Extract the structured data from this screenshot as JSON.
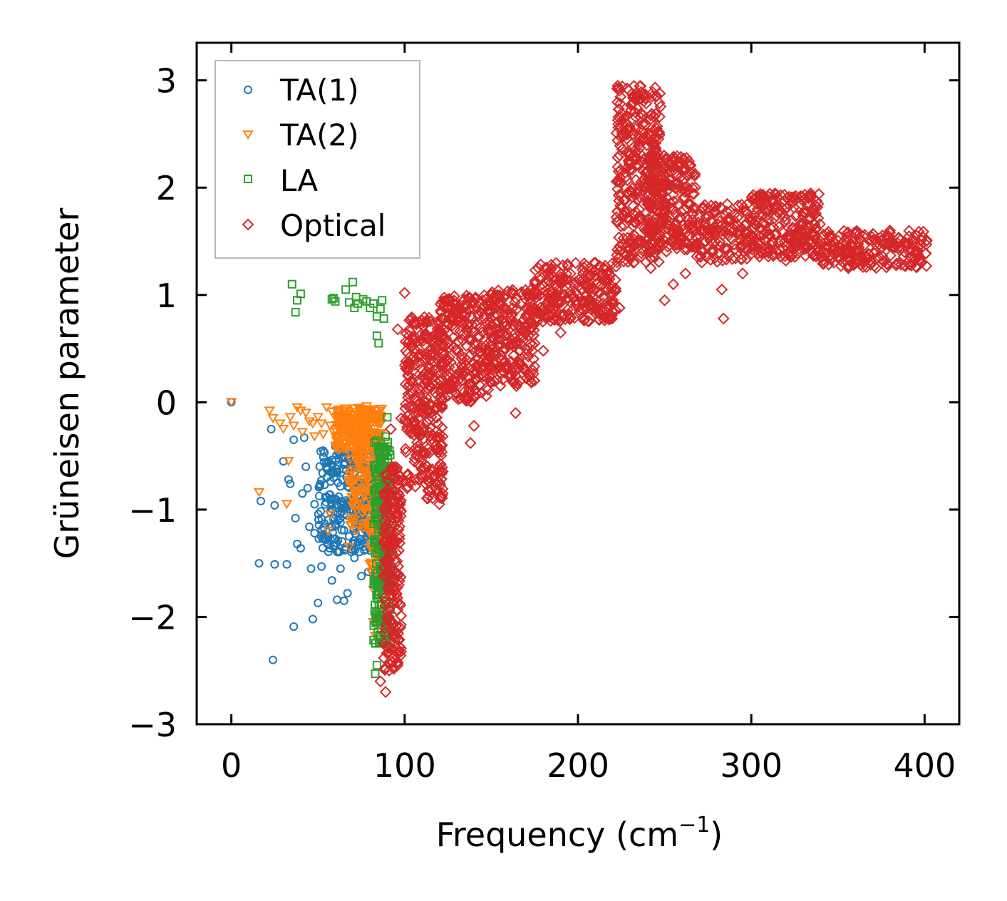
{
  "chart_data": {
    "type": "scatter",
    "xlabel": "Frequency (cm",
    "xlabel_sup": "−1",
    "xlabel_close": ")",
    "ylabel": "Grüneisen parameter",
    "xlim": [
      -20,
      420
    ],
    "ylim": [
      -3,
      3.35
    ],
    "xticks": [
      0,
      100,
      200,
      300,
      400
    ],
    "xtick_labels": [
      "0",
      "100",
      "200",
      "300",
      "400"
    ],
    "yticks": [
      -3,
      -2,
      -1,
      0,
      1,
      2,
      3
    ],
    "ytick_labels": [
      "−3",
      "−2",
      "−1",
      "0",
      "1",
      "2",
      "3"
    ],
    "legend_position": "top-left",
    "series": [
      {
        "name": "TA(1)",
        "marker": "circle",
        "color": "#1f77b4",
        "points": [
          [
            0,
            0
          ],
          [
            24,
            -2.4
          ],
          [
            23,
            -0.25
          ],
          [
            17,
            -0.92
          ],
          [
            25,
            -0.96
          ],
          [
            16,
            -1.5
          ],
          [
            25,
            -1.51
          ],
          [
            32,
            -1.51
          ],
          [
            36,
            -2.09
          ],
          [
            30,
            -0.55
          ],
          [
            33,
            -0.72
          ],
          [
            34,
            -0.76
          ],
          [
            36,
            -0.35
          ],
          [
            37,
            -1.08
          ],
          [
            38,
            -1.32
          ],
          [
            40,
            -1.36
          ],
          [
            42,
            -0.33
          ],
          [
            44,
            -0.8
          ],
          [
            45,
            -1.16
          ],
          [
            46,
            -1.55
          ],
          [
            47,
            -2.02
          ],
          [
            48,
            -1.22
          ],
          [
            50,
            -1.87
          ],
          [
            52,
            -1.53
          ],
          [
            53,
            -0.45
          ],
          [
            55,
            -0.7
          ],
          [
            57,
            -1.02
          ],
          [
            58,
            -1.66
          ],
          [
            59,
            -1.34
          ],
          [
            60,
            -0.41
          ],
          [
            61,
            -1.84
          ],
          [
            62,
            -0.88
          ],
          [
            63,
            -1.55
          ],
          [
            65,
            -1.85
          ],
          [
            66,
            -0.25
          ],
          [
            67,
            -1.78
          ],
          [
            68,
            -1.25
          ],
          [
            70,
            -0.62
          ],
          [
            71,
            -1.45
          ],
          [
            72,
            -1.04
          ],
          [
            74,
            -0.49
          ],
          [
            75,
            -1.62
          ],
          [
            76,
            -0.98
          ],
          [
            77,
            -0.18
          ],
          [
            78,
            -1.2
          ],
          [
            79,
            -1.58
          ],
          [
            80,
            -0.85
          ],
          [
            81,
            -0.33
          ],
          [
            82,
            -0.72
          ],
          [
            83,
            -1.1
          ],
          [
            41,
            -0.85
          ],
          [
            43,
            -0.6
          ],
          [
            48,
            -0.95
          ],
          [
            51,
            -0.78
          ],
          [
            54,
            -1.25
          ],
          [
            56,
            -0.55
          ],
          [
            58,
            -0.9
          ],
          [
            61,
            -0.65
          ],
          [
            63,
            -1.12
          ],
          [
            64,
            -0.72
          ],
          [
            66,
            -1.35
          ],
          [
            68,
            -0.95
          ],
          [
            69,
            -0.52
          ],
          [
            71,
            -0.78
          ],
          [
            73,
            -1.3
          ],
          [
            75,
            -0.68
          ],
          [
            77,
            -0.88
          ],
          [
            78,
            -0.55
          ],
          [
            80,
            -1.05
          ],
          [
            82,
            -0.48
          ],
          [
            84,
            -0.8
          ],
          [
            85,
            -0.62
          ],
          [
            86,
            -0.95
          ]
        ],
        "clusters": [
          {
            "x": [
              50,
              86
            ],
            "y": [
              -1.4,
              -0.45
            ],
            "n": 280
          }
        ]
      },
      {
        "name": "TA(2)",
        "marker": "triangle-down",
        "color": "#ff7f0e",
        "points": [
          [
            0,
            0
          ],
          [
            16,
            -0.84
          ],
          [
            22,
            -0.08
          ],
          [
            24,
            -0.15
          ],
          [
            28,
            -0.2
          ],
          [
            30,
            -0.25
          ],
          [
            32,
            -0.95
          ],
          [
            33,
            -0.55
          ],
          [
            34,
            -0.14
          ],
          [
            36,
            -0.22
          ],
          [
            38,
            -0.05
          ],
          [
            40,
            -0.08
          ],
          [
            41,
            -0.28
          ],
          [
            43,
            -0.1
          ],
          [
            45,
            -0.18
          ],
          [
            47,
            -0.2
          ],
          [
            48,
            -0.32
          ],
          [
            50,
            -0.14
          ],
          [
            52,
            -0.2
          ],
          [
            53,
            -0.3
          ],
          [
            55,
            -0.05
          ],
          [
            57,
            -0.22
          ],
          [
            58,
            -0.09
          ],
          [
            59,
            -0.28
          ],
          [
            61,
            -0.17
          ],
          [
            62,
            -0.07
          ],
          [
            63,
            -0.38
          ],
          [
            64,
            -0.12
          ],
          [
            65,
            -0.25
          ],
          [
            66,
            -0.08
          ],
          [
            67,
            -0.18
          ],
          [
            68,
            -0.3
          ],
          [
            69,
            -0.13
          ],
          [
            70,
            -0.2
          ],
          [
            71,
            -0.06
          ],
          [
            72,
            -0.26
          ],
          [
            73,
            -0.16
          ],
          [
            74,
            -0.35
          ],
          [
            75,
            -0.1
          ],
          [
            76,
            -0.22
          ],
          [
            77,
            -0.3
          ],
          [
            78,
            -0.04
          ],
          [
            79,
            -0.19
          ],
          [
            80,
            -0.12
          ],
          [
            81,
            -0.28
          ],
          [
            82,
            -0.16
          ],
          [
            57,
            -1.05
          ],
          [
            56,
            -1.2
          ],
          [
            82,
            -1.75
          ],
          [
            82,
            -2.05
          ],
          [
            83,
            -2.18
          ],
          [
            68,
            -1.35
          ]
        ],
        "clusters": [
          {
            "x": [
              60,
              87
            ],
            "y": [
              -0.45,
              -0.05
            ],
            "n": 200
          },
          {
            "x": [
              68,
              86
            ],
            "y": [
              -1.2,
              -0.35
            ],
            "n": 140
          },
          {
            "x": [
              80,
              86
            ],
            "y": [
              -1.6,
              -1.1
            ],
            "n": 40
          }
        ]
      },
      {
        "name": "LA",
        "marker": "square",
        "color": "#2ca02c",
        "points": [
          [
            35,
            1.1
          ],
          [
            37,
            0.84
          ],
          [
            38,
            0.95
          ],
          [
            40,
            1.01
          ],
          [
            58,
            0.96
          ],
          [
            59,
            0.97
          ],
          [
            60,
            0.94
          ],
          [
            66,
            1.05
          ],
          [
            68,
            0.93
          ],
          [
            70,
            1.12
          ],
          [
            71,
            0.88
          ],
          [
            72,
            0.98
          ],
          [
            73,
            0.92
          ],
          [
            76,
            0.96
          ],
          [
            78,
            0.94
          ],
          [
            80,
            0.88
          ],
          [
            82,
            0.92
          ],
          [
            84,
            0.62
          ],
          [
            85,
            0.55
          ],
          [
            86,
            0.87
          ],
          [
            87,
            0.95
          ],
          [
            84,
            0.8
          ],
          [
            88,
            0.78
          ],
          [
            90,
            -0.14
          ],
          [
            89,
            -0.32
          ],
          [
            88,
            -0.45
          ],
          [
            83,
            -2.53
          ],
          [
            84,
            -2.45
          ]
        ],
        "clusters": [
          {
            "x": [
              82,
              92
            ],
            "y": [
              -2.25,
              -0.35
            ],
            "n": 260
          }
        ]
      },
      {
        "name": "Optical",
        "marker": "diamond",
        "color": "#d62728",
        "points": [
          [
            86,
            -2.6
          ],
          [
            89,
            -2.7
          ],
          [
            91,
            -2.5
          ],
          [
            92,
            -0.25
          ],
          [
            98,
            -0.15
          ],
          [
            96,
            0.68
          ],
          [
            100,
            1.02
          ],
          [
            110,
            -0.62
          ],
          [
            113,
            -0.6
          ],
          [
            115,
            -0.1
          ],
          [
            118,
            -0.75
          ],
          [
            120,
            -0.95
          ],
          [
            122,
            -0.85
          ],
          [
            125,
            0.95
          ],
          [
            133,
            0.35
          ],
          [
            138,
            -0.38
          ],
          [
            140,
            -0.22
          ],
          [
            145,
            0.95
          ],
          [
            150,
            1.0
          ],
          [
            155,
            0.65
          ],
          [
            164,
            -0.1
          ],
          [
            175,
            0.55
          ],
          [
            180,
            0.48
          ],
          [
            190,
            0.65
          ],
          [
            205,
            1.1
          ],
          [
            210,
            1.3
          ],
          [
            216,
            0.85
          ],
          [
            224,
            0.88
          ],
          [
            232,
            1.3
          ],
          [
            242,
            1.25
          ],
          [
            250,
            0.95
          ],
          [
            255,
            1.1
          ],
          [
            262,
            1.2
          ],
          [
            268,
            1.6
          ],
          [
            272,
            1.4
          ],
          [
            283,
            1.05
          ],
          [
            284,
            0.78
          ],
          [
            288,
            1.78
          ],
          [
            292,
            1.65
          ],
          [
            295,
            1.2
          ],
          [
            300,
            1.55
          ],
          [
            305,
            1.5
          ],
          [
            320,
            1.32
          ],
          [
            326,
            1.45
          ],
          [
            332,
            1.6
          ],
          [
            340,
            1.5
          ],
          [
            345,
            1.55
          ],
          [
            350,
            1.4
          ],
          [
            356,
            1.25
          ],
          [
            365,
            1.3
          ],
          [
            380,
            1.6
          ],
          [
            392,
            1.35
          ],
          [
            398,
            1.3
          ],
          [
            401,
            1.27
          ]
        ],
        "clusters": [
          {
            "x": [
              88,
              98
            ],
            "y": [
              -2.5,
              -0.6
            ],
            "n": 220
          },
          {
            "x": [
              100,
              122
            ],
            "y": [
              -0.9,
              0.8
            ],
            "n": 320
          },
          {
            "x": [
              120,
              150
            ],
            "y": [
              0.0,
              1.0
            ],
            "n": 250
          },
          {
            "x": [
              148,
              175
            ],
            "y": [
              0.15,
              1.05
            ],
            "n": 220
          },
          {
            "x": [
              175,
              222
            ],
            "y": [
              0.75,
              1.3
            ],
            "n": 260
          },
          {
            "x": [
              222,
              248
            ],
            "y": [
              1.3,
              2.95
            ],
            "n": 340
          },
          {
            "x": [
              240,
              268
            ],
            "y": [
              1.4,
              2.3
            ],
            "n": 240
          },
          {
            "x": [
              268,
              300
            ],
            "y": [
              1.3,
              1.85
            ],
            "n": 140
          },
          {
            "x": [
              300,
              340
            ],
            "y": [
              1.35,
              1.95
            ],
            "n": 240
          },
          {
            "x": [
              340,
              402
            ],
            "y": [
              1.25,
              1.6
            ],
            "n": 200
          }
        ]
      }
    ]
  }
}
